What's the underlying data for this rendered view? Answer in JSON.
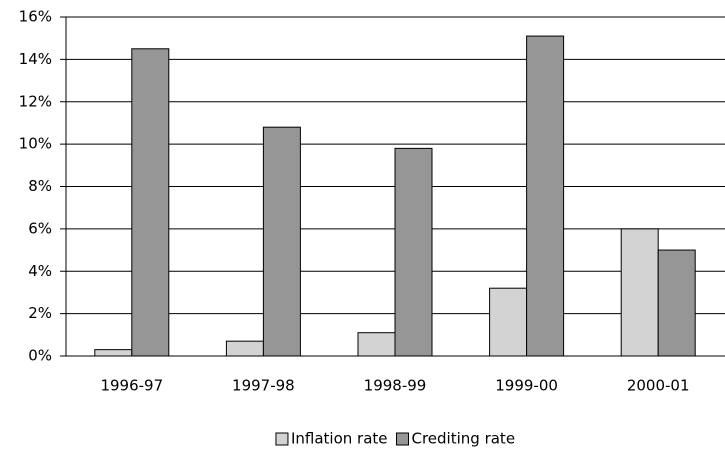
{
  "chart_data": {
    "type": "bar",
    "categories": [
      "1996-97",
      "1997-98",
      "1998-99",
      "1999-00",
      "2000-01"
    ],
    "series": [
      {
        "name": "Inflation rate",
        "color": "#d3d3d3",
        "values": [
          0.3,
          0.7,
          1.1,
          3.2,
          6.0
        ]
      },
      {
        "name": "Crediting rate",
        "color": "#969696",
        "values": [
          14.5,
          10.8,
          9.8,
          15.1,
          5.0
        ]
      }
    ],
    "ylim": [
      0,
      16
    ],
    "yticks": [
      {
        "value": 0,
        "label": "0%"
      },
      {
        "value": 2,
        "label": "2%"
      },
      {
        "value": 4,
        "label": "4%"
      },
      {
        "value": 6,
        "label": "6%"
      },
      {
        "value": 8,
        "label": "8%"
      },
      {
        "value": 10,
        "label": "10%"
      },
      {
        "value": 12,
        "label": "12%"
      },
      {
        "value": 14,
        "label": "14%"
      },
      {
        "value": 16,
        "label": "16%"
      }
    ],
    "grid": true,
    "legend": "bottom"
  }
}
